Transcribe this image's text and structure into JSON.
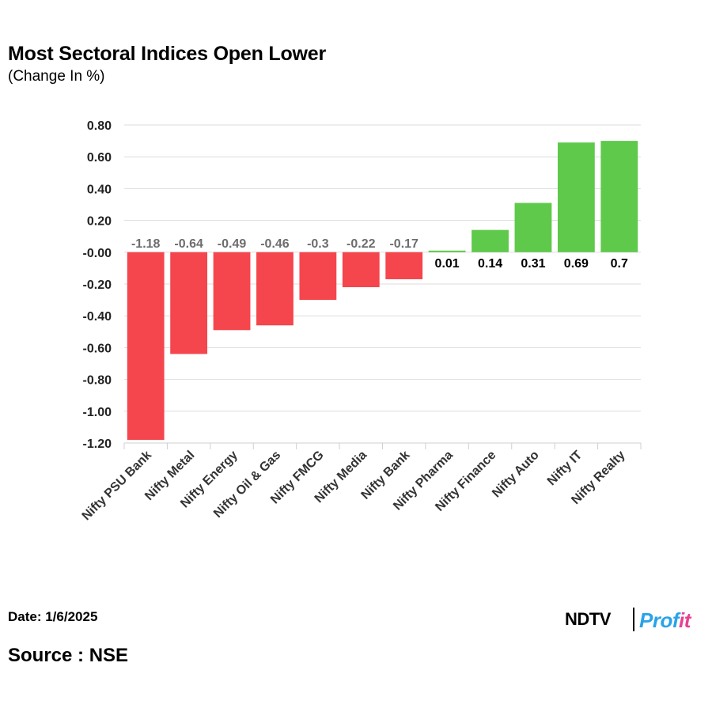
{
  "header": {
    "title": "Most Sectoral Indices Open Lower",
    "subtitle": "(Change In %)"
  },
  "footer": {
    "date": "Date: 1/6/2025",
    "source": "Source : NSE"
  },
  "logo": {
    "ndtv": "NDTV",
    "profit_main": "Prof",
    "profit_tail": "it"
  },
  "colors": {
    "positive": "#5ec94a",
    "negative": "#f5454d",
    "grid": "#dddddd",
    "label_negative": "#6d6d6d",
    "label_positive": "#000000"
  },
  "chart_data": {
    "type": "bar",
    "categories": [
      "Nifty PSU Bank",
      "Nifty Metal",
      "Nifty Energy",
      "Nifty Oil & Gas",
      "Nifty FMCG",
      "Nifty Media",
      "Nifty Bank",
      "Nifty Pharma",
      "Nifty Finance",
      "Nifty Auto",
      "Nifty IT",
      "Nifty Realty"
    ],
    "values": [
      -1.18,
      -0.64,
      -0.49,
      -0.46,
      -0.3,
      -0.22,
      -0.17,
      0.01,
      0.14,
      0.31,
      0.69,
      0.7
    ],
    "value_labels": [
      "-1.18",
      "-0.64",
      "-0.49",
      "-0.46",
      "-0.3",
      "-0.22",
      "-0.17",
      "0.01",
      "0.14",
      "0.31",
      "0.69",
      "0.7"
    ],
    "y_ticks": [
      0.8,
      0.6,
      0.4,
      0.2,
      0,
      -0.2,
      -0.4,
      -0.6,
      -0.8,
      -1.0,
      -1.2
    ],
    "y_tick_labels": [
      "0.80",
      "0.60",
      "0.40",
      "0.20",
      "-0.00",
      "-0.20",
      "-0.40",
      "-0.60",
      "-0.80",
      "-1.00",
      "-1.20"
    ],
    "ylim": [
      -1.2,
      0.8
    ],
    "grid": true,
    "legend": "none"
  }
}
